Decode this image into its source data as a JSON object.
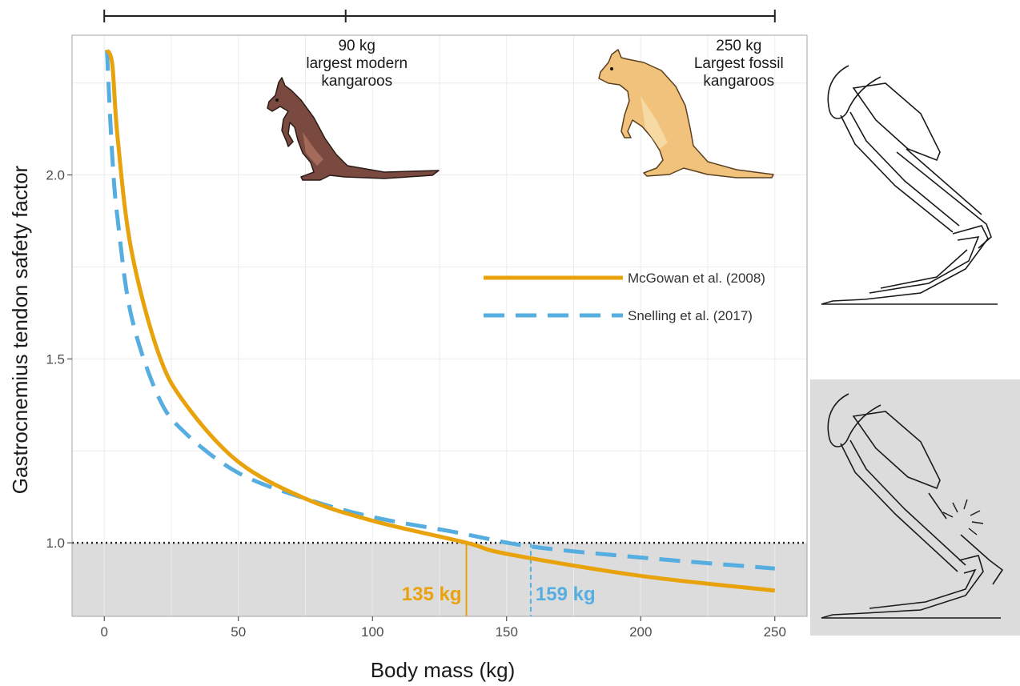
{
  "chart_data": {
    "type": "line",
    "xlabel": "Body mass (kg)",
    "ylabel": "Gastrocnemius tendon safety factor",
    "xlim": [
      -12,
      262
    ],
    "ylim": [
      0.8,
      2.38
    ],
    "x_ticks": [
      0,
      50,
      100,
      150,
      200,
      250
    ],
    "y_ticks": [
      1.0,
      1.5,
      2.0
    ],
    "x_tick_labels": [
      "0",
      "50",
      "100",
      "150",
      "200",
      "250"
    ],
    "y_tick_labels": [
      "1.0",
      "1.5",
      "2.0"
    ],
    "grid": true,
    "shaded_region_below": 1.0,
    "reference_line_y": 1.0,
    "legend_position": "right",
    "series": [
      {
        "name": "McGowan et al. (2008)",
        "style": "solid",
        "color": "#e8a20c",
        "x": [
          1,
          3,
          5,
          10,
          20,
          30,
          50,
          75,
          100,
          135,
          150,
          200,
          250
        ],
        "y": [
          2.34,
          2.3,
          2.1,
          1.8,
          1.52,
          1.38,
          1.22,
          1.12,
          1.06,
          1.0,
          0.97,
          0.91,
          0.87
        ]
      },
      {
        "name": "Snelling et al. (2017)",
        "style": "dashed",
        "color": "#56aee0",
        "x": [
          1,
          3,
          5,
          10,
          20,
          30,
          50,
          75,
          100,
          130,
          159,
          200,
          250
        ],
        "y": [
          2.34,
          2.05,
          1.88,
          1.62,
          1.4,
          1.3,
          1.19,
          1.12,
          1.07,
          1.03,
          0.99,
          0.96,
          0.93
        ]
      }
    ],
    "threshold_markers": [
      {
        "x": 135,
        "label": "135 kg",
        "color": "#e8a20c",
        "style": "solid"
      },
      {
        "x": 159,
        "label": "159 kg",
        "color": "#56aee0",
        "style": "dashed"
      }
    ],
    "top_scale_ticks": [
      0,
      90,
      250
    ],
    "annotations": [
      {
        "x": 90,
        "lines": [
          "90 kg",
          "largest modern",
          "kangaroos"
        ]
      },
      {
        "x": 250,
        "lines": [
          "250 kg",
          "Largest fossil",
          "kangaroos"
        ]
      }
    ]
  },
  "colors": {
    "background_shade": "#dcdcdc",
    "grid": "#e8e8e8",
    "panel_border": "#a6a6a6",
    "modern_kangaroo": "#7a4a40",
    "fossil_kangaroo": "#f0c27b"
  },
  "icons": [
    "modern-kangaroo-icon",
    "fossil-kangaroo-icon",
    "leg-intact-icon",
    "leg-ruptured-icon"
  ]
}
